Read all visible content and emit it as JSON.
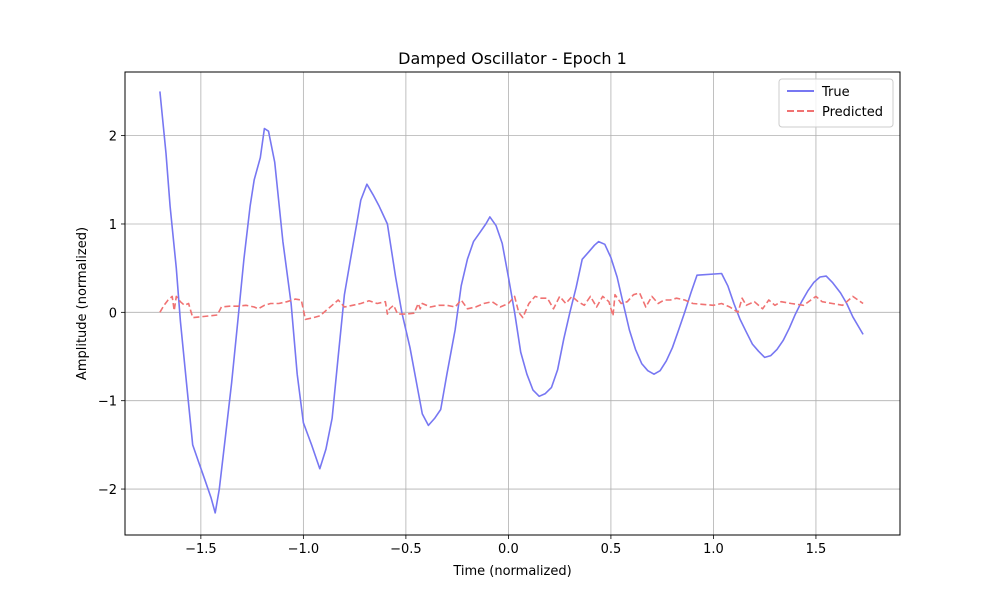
{
  "chart_data": {
    "type": "line",
    "title": "Damped Oscillator - Epoch 1",
    "xlabel": "Time (normalized)",
    "ylabel": "Amplitude (normalized)",
    "xlim": [
      -1.87,
      1.91
    ],
    "ylim": [
      -2.52,
      2.72
    ],
    "xticks": [
      -1.5,
      -1.0,
      -0.5,
      0.0,
      0.5,
      1.0,
      1.5
    ],
    "yticks": [
      -2,
      -1,
      0,
      1,
      2
    ],
    "grid": true,
    "legend": {
      "position": "top-right",
      "entries": [
        "True",
        "Predicted"
      ]
    },
    "series": [
      {
        "name": "True",
        "color": "#7777f2",
        "style": "solid",
        "points": [
          [
            -1.7,
            2.5
          ],
          [
            -1.67,
            1.8
          ],
          [
            -1.65,
            1.2
          ],
          [
            -1.62,
            0.5
          ],
          [
            -1.6,
            -0.1
          ],
          [
            -1.57,
            -0.8
          ],
          [
            -1.54,
            -1.5
          ],
          [
            -1.51,
            -1.7
          ],
          [
            -1.48,
            -1.9
          ],
          [
            -1.45,
            -2.1
          ],
          [
            -1.43,
            -2.27
          ],
          [
            -1.41,
            -2.0
          ],
          [
            -1.38,
            -1.4
          ],
          [
            -1.35,
            -0.8
          ],
          [
            -1.32,
            -0.1
          ],
          [
            -1.29,
            0.6
          ],
          [
            -1.26,
            1.2
          ],
          [
            -1.24,
            1.5
          ],
          [
            -1.21,
            1.75
          ],
          [
            -1.19,
            2.08
          ],
          [
            -1.17,
            2.05
          ],
          [
            -1.14,
            1.7
          ],
          [
            -1.1,
            0.8
          ],
          [
            -1.06,
            0.1
          ],
          [
            -1.03,
            -0.7
          ],
          [
            -1.0,
            -1.25
          ],
          [
            -0.96,
            -1.5
          ],
          [
            -0.92,
            -1.77
          ],
          [
            -0.89,
            -1.55
          ],
          [
            -0.86,
            -1.2
          ],
          [
            -0.83,
            -0.5
          ],
          [
            -0.8,
            0.2
          ],
          [
            -0.77,
            0.6
          ],
          [
            -0.74,
            1.0
          ],
          [
            -0.72,
            1.27
          ],
          [
            -0.69,
            1.45
          ],
          [
            -0.66,
            1.33
          ],
          [
            -0.63,
            1.2
          ],
          [
            -0.59,
            1.0
          ],
          [
            -0.55,
            0.4
          ],
          [
            -0.52,
            0.0
          ],
          [
            -0.48,
            -0.4
          ],
          [
            -0.44,
            -0.9
          ],
          [
            -0.42,
            -1.15
          ],
          [
            -0.39,
            -1.28
          ],
          [
            -0.36,
            -1.2
          ],
          [
            -0.33,
            -1.1
          ],
          [
            -0.3,
            -0.7
          ],
          [
            -0.26,
            -0.2
          ],
          [
            -0.23,
            0.3
          ],
          [
            -0.2,
            0.6
          ],
          [
            -0.17,
            0.8
          ],
          [
            -0.14,
            0.9
          ],
          [
            -0.11,
            1.0
          ],
          [
            -0.09,
            1.08
          ],
          [
            -0.06,
            0.98
          ],
          [
            -0.03,
            0.78
          ],
          [
            0.0,
            0.4
          ],
          [
            0.03,
            0.0
          ],
          [
            0.06,
            -0.45
          ],
          [
            0.09,
            -0.7
          ],
          [
            0.12,
            -0.88
          ],
          [
            0.15,
            -0.95
          ],
          [
            0.18,
            -0.92
          ],
          [
            0.21,
            -0.85
          ],
          [
            0.24,
            -0.65
          ],
          [
            0.27,
            -0.3
          ],
          [
            0.3,
            0.0
          ],
          [
            0.33,
            0.28
          ],
          [
            0.36,
            0.6
          ],
          [
            0.39,
            0.68
          ],
          [
            0.42,
            0.76
          ],
          [
            0.44,
            0.8
          ],
          [
            0.47,
            0.77
          ],
          [
            0.5,
            0.62
          ],
          [
            0.53,
            0.4
          ],
          [
            0.56,
            0.1
          ],
          [
            0.59,
            -0.2
          ],
          [
            0.62,
            -0.42
          ],
          [
            0.65,
            -0.58
          ],
          [
            0.68,
            -0.66
          ],
          [
            0.71,
            -0.7
          ],
          [
            0.74,
            -0.66
          ],
          [
            0.77,
            -0.55
          ],
          [
            0.8,
            -0.4
          ],
          [
            0.83,
            -0.2
          ],
          [
            0.86,
            0.0
          ],
          [
            0.89,
            0.22
          ],
          [
            0.92,
            0.42
          ],
          [
            1.04,
            0.44
          ],
          [
            1.07,
            0.3
          ],
          [
            1.1,
            0.1
          ],
          [
            1.13,
            -0.08
          ],
          [
            1.16,
            -0.22
          ],
          [
            1.19,
            -0.36
          ],
          [
            1.22,
            -0.44
          ],
          [
            1.25,
            -0.51
          ],
          [
            1.28,
            -0.49
          ],
          [
            1.31,
            -0.42
          ],
          [
            1.34,
            -0.32
          ],
          [
            1.37,
            -0.18
          ],
          [
            1.4,
            -0.02
          ],
          [
            1.43,
            0.12
          ],
          [
            1.46,
            0.24
          ],
          [
            1.49,
            0.34
          ],
          [
            1.52,
            0.4
          ],
          [
            1.55,
            0.41
          ],
          [
            1.58,
            0.34
          ],
          [
            1.62,
            0.22
          ],
          [
            1.65,
            0.1
          ],
          [
            1.68,
            -0.05
          ],
          [
            1.73,
            -0.25
          ]
        ]
      },
      {
        "name": "Predicted",
        "color": "#f07272",
        "style": "dashed",
        "points": [
          [
            -1.7,
            0.0
          ],
          [
            -1.68,
            0.08
          ],
          [
            -1.66,
            0.14
          ],
          [
            -1.64,
            0.18
          ],
          [
            -1.63,
            0.02
          ],
          [
            -1.62,
            0.18
          ],
          [
            -1.6,
            0.12
          ],
          [
            -1.58,
            0.08
          ],
          [
            -1.56,
            0.1
          ],
          [
            -1.54,
            -0.06
          ],
          [
            -1.5,
            -0.05
          ],
          [
            -1.46,
            -0.04
          ],
          [
            -1.42,
            -0.03
          ],
          [
            -1.4,
            0.06
          ],
          [
            -1.36,
            0.07
          ],
          [
            -1.32,
            0.07
          ],
          [
            -1.28,
            0.08
          ],
          [
            -1.24,
            0.06
          ],
          [
            -1.22,
            0.04
          ],
          [
            -1.19,
            0.08
          ],
          [
            -1.16,
            0.1
          ],
          [
            -1.12,
            0.1
          ],
          [
            -1.08,
            0.12
          ],
          [
            -1.04,
            0.15
          ],
          [
            -1.01,
            0.14
          ],
          [
            -0.99,
            -0.08
          ],
          [
            -0.95,
            -0.06
          ],
          [
            -0.92,
            -0.04
          ],
          [
            -0.89,
            0.02
          ],
          [
            -0.86,
            0.08
          ],
          [
            -0.83,
            0.14
          ],
          [
            -0.8,
            0.06
          ],
          [
            -0.76,
            0.08
          ],
          [
            -0.72,
            0.1
          ],
          [
            -0.68,
            0.13
          ],
          [
            -0.64,
            0.1
          ],
          [
            -0.6,
            0.12
          ],
          [
            -0.59,
            -0.02
          ],
          [
            -0.58,
            0.04
          ],
          [
            -0.56,
            0.08
          ],
          [
            -0.54,
            -0.02
          ],
          [
            -0.5,
            -0.02
          ],
          [
            -0.46,
            -0.01
          ],
          [
            -0.44,
            0.1
          ],
          [
            -0.43,
            0.04
          ],
          [
            -0.42,
            0.1
          ],
          [
            -0.38,
            0.06
          ],
          [
            -0.34,
            0.08
          ],
          [
            -0.3,
            0.08
          ],
          [
            -0.26,
            0.06
          ],
          [
            -0.23,
            0.14
          ],
          [
            -0.2,
            0.04
          ],
          [
            -0.16,
            0.06
          ],
          [
            -0.12,
            0.1
          ],
          [
            -0.08,
            0.12
          ],
          [
            -0.04,
            0.06
          ],
          [
            0.0,
            0.1
          ],
          [
            0.03,
            0.18
          ],
          [
            0.05,
            0.0
          ],
          [
            0.07,
            -0.06
          ],
          [
            0.1,
            0.1
          ],
          [
            0.13,
            0.18
          ],
          [
            0.16,
            0.16
          ],
          [
            0.19,
            0.16
          ],
          [
            0.22,
            0.04
          ],
          [
            0.25,
            0.18
          ],
          [
            0.28,
            0.1
          ],
          [
            0.31,
            0.18
          ],
          [
            0.34,
            0.12
          ],
          [
            0.37,
            0.08
          ],
          [
            0.4,
            0.18
          ],
          [
            0.43,
            0.06
          ],
          [
            0.46,
            0.18
          ],
          [
            0.49,
            0.12
          ],
          [
            0.51,
            -0.04
          ],
          [
            0.52,
            0.2
          ],
          [
            0.55,
            0.1
          ],
          [
            0.58,
            0.12
          ],
          [
            0.61,
            0.2
          ],
          [
            0.64,
            0.22
          ],
          [
            0.67,
            0.06
          ],
          [
            0.7,
            0.18
          ],
          [
            0.73,
            0.1
          ],
          [
            0.76,
            0.14
          ],
          [
            0.79,
            0.14
          ],
          [
            0.82,
            0.16
          ],
          [
            0.86,
            0.14
          ],
          [
            0.9,
            0.1
          ],
          [
            0.95,
            0.09
          ],
          [
            1.0,
            0.08
          ],
          [
            1.04,
            0.1
          ],
          [
            1.08,
            0.06
          ],
          [
            1.12,
            0.0
          ],
          [
            1.14,
            0.16
          ],
          [
            1.16,
            0.08
          ],
          [
            1.2,
            0.12
          ],
          [
            1.24,
            0.04
          ],
          [
            1.27,
            0.14
          ],
          [
            1.3,
            0.08
          ],
          [
            1.33,
            0.12
          ],
          [
            1.38,
            0.1
          ],
          [
            1.44,
            0.08
          ],
          [
            1.5,
            0.18
          ],
          [
            1.53,
            0.12
          ],
          [
            1.58,
            0.1
          ],
          [
            1.63,
            0.08
          ],
          [
            1.68,
            0.18
          ],
          [
            1.73,
            0.1
          ]
        ]
      }
    ]
  }
}
